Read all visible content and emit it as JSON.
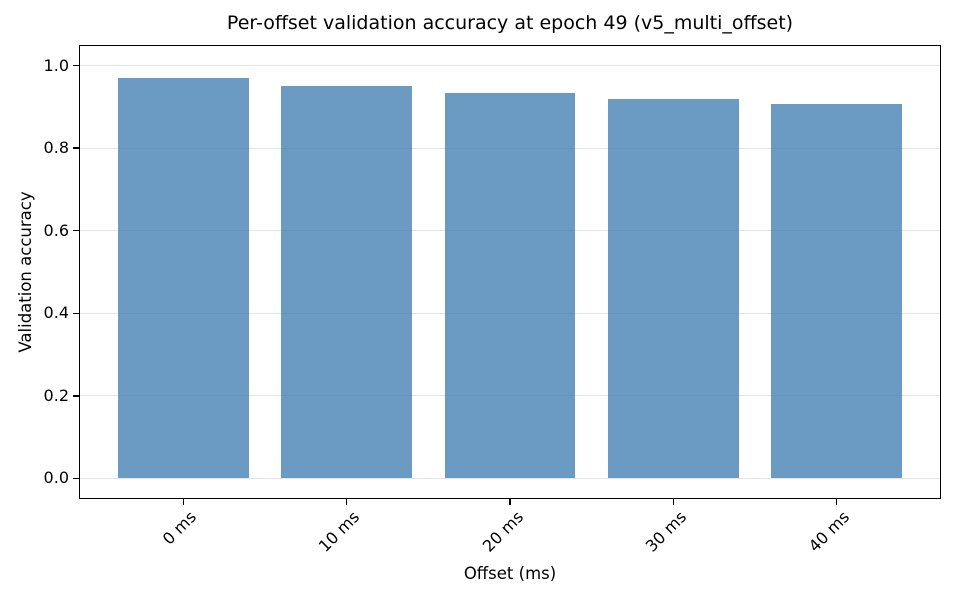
{
  "chart_data": {
    "type": "bar",
    "title": "Per-offset validation accuracy at epoch 49 (v5_multi_offset)",
    "xlabel": "Offset (ms)",
    "ylabel": "Validation accuracy",
    "categories": [
      "0 ms",
      "10 ms",
      "20 ms",
      "30 ms",
      "40 ms"
    ],
    "values": [
      0.971,
      0.951,
      0.933,
      0.919,
      0.906
    ],
    "yticks": [
      0.0,
      0.2,
      0.4,
      0.6,
      0.8,
      1.0
    ],
    "ytick_labels": [
      "0.0",
      "0.2",
      "0.4",
      "0.6",
      "0.8",
      "1.0"
    ],
    "ylim": [
      -0.05,
      1.05
    ],
    "xlim": [
      -0.64,
      4.64
    ],
    "bar_width": 0.8,
    "bar_color": "#6B9BC3",
    "grid": "horizontal",
    "xtick_rotation_deg": 45,
    "legend": "none"
  }
}
